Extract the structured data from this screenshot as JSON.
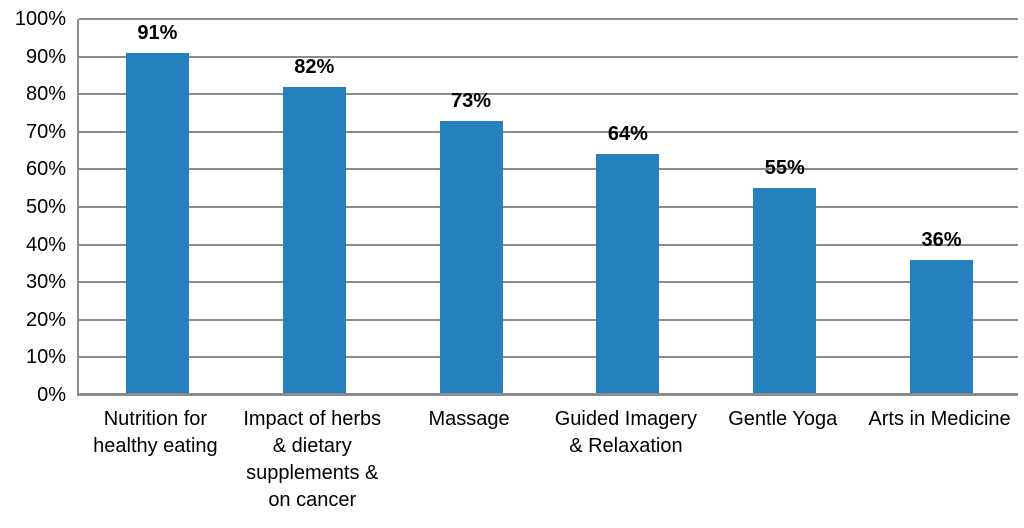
{
  "chart_data": {
    "type": "bar",
    "title": "",
    "categories": [
      "Nutrition for healthy eating",
      "Impact of herbs & dietary supplements & on cancer",
      "Massage",
      "Guided Imagery & Relaxation",
      "Gentle Yoga",
      "Arts in Medicine"
    ],
    "values": [
      91,
      82,
      73,
      64,
      55,
      36
    ],
    "data_labels": [
      "91%",
      "82%",
      "73%",
      "64%",
      "55%",
      "36%"
    ],
    "xlabel": "",
    "ylabel": "",
    "ylim": [
      0,
      100
    ],
    "ytick_step": 10,
    "ytick_labels": [
      "0%",
      "10%",
      "20%",
      "30%",
      "40%",
      "50%",
      "60%",
      "70%",
      "80%",
      "90%",
      "100%"
    ],
    "grid": "horizontal",
    "legend": "none",
    "colors": {
      "bar": "#2580be",
      "gridline": "#8c8c8c",
      "axis_line": "#8c8c8c",
      "text": "#000000",
      "background": "#ffffff"
    }
  }
}
